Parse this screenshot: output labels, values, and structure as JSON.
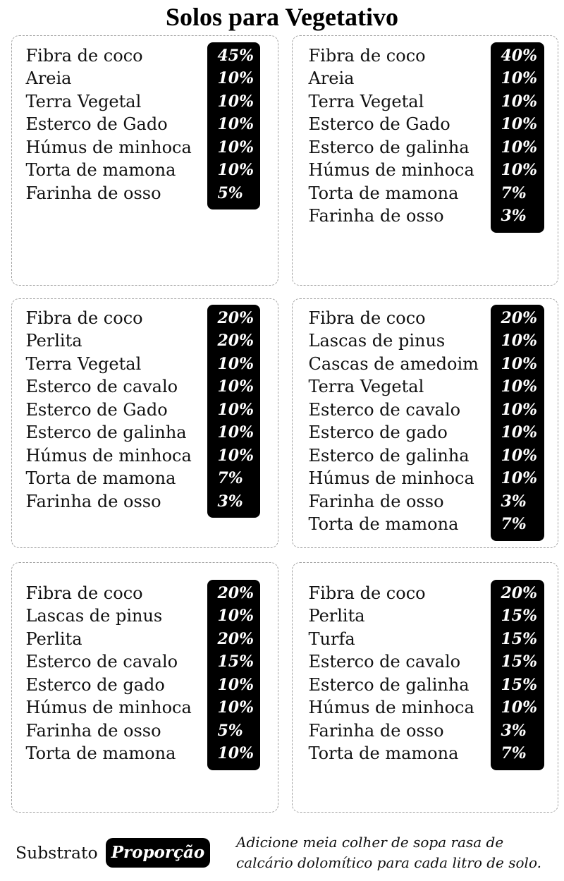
{
  "title": "Solos para Vegetativo",
  "colors": {
    "proportion_box": "#000000",
    "proportion_text": "#ffffff",
    "card_border": "#a3a3a3"
  },
  "cards": [
    {
      "items": [
        {
          "name": "Fibra de coco",
          "pct": "45%"
        },
        {
          "name": "Areia",
          "pct": "10%"
        },
        {
          "name": "Terra Vegetal",
          "pct": "10%"
        },
        {
          "name": "Esterco de Gado",
          "pct": "10%"
        },
        {
          "name": "Húmus de minhoca",
          "pct": "10%"
        },
        {
          "name": "Torta de mamona",
          "pct": "10%"
        },
        {
          "name": "Farinha de osso",
          "pct": "5%"
        }
      ]
    },
    {
      "items": [
        {
          "name": "Fibra de coco",
          "pct": "40%"
        },
        {
          "name": "Areia",
          "pct": "10%"
        },
        {
          "name": "Terra Vegetal",
          "pct": "10%"
        },
        {
          "name": "Esterco de Gado",
          "pct": "10%"
        },
        {
          "name": "Esterco de galinha",
          "pct": "10%"
        },
        {
          "name": "Húmus de minhoca",
          "pct": "10%"
        },
        {
          "name": "Torta de mamona",
          "pct": "7%"
        },
        {
          "name": "Farinha de osso",
          "pct": "3%"
        }
      ]
    },
    {
      "items": [
        {
          "name": "Fibra de coco",
          "pct": "20%"
        },
        {
          "name": "Perlita",
          "pct": "20%"
        },
        {
          "name": "Terra Vegetal",
          "pct": "10%"
        },
        {
          "name": "Esterco de cavalo",
          "pct": "10%"
        },
        {
          "name": "Esterco de Gado",
          "pct": "10%"
        },
        {
          "name": "Esterco de galinha",
          "pct": "10%"
        },
        {
          "name": "Húmus de minhoca",
          "pct": "10%"
        },
        {
          "name": "Torta de mamona",
          "pct": "7%"
        },
        {
          "name": "Farinha de osso",
          "pct": "3%"
        }
      ]
    },
    {
      "items": [
        {
          "name": "Fibra de coco",
          "pct": "20%"
        },
        {
          "name": "Lascas de pinus",
          "pct": "10%"
        },
        {
          "name": "Cascas de amedoim",
          "pct": "10%"
        },
        {
          "name": "Terra Vegetal",
          "pct": "10%"
        },
        {
          "name": "Esterco de cavalo",
          "pct": "10%"
        },
        {
          "name": "Esterco de gado",
          "pct": "10%"
        },
        {
          "name": "Esterco de galinha",
          "pct": "10%"
        },
        {
          "name": "Húmus de minhoca",
          "pct": "10%"
        },
        {
          "name": "Farinha de osso",
          "pct": "3%"
        },
        {
          "name": "Torta de mamona",
          "pct": "7%"
        }
      ]
    },
    {
      "items": [
        {
          "name": "Fibra de coco",
          "pct": "20%"
        },
        {
          "name": "Lascas de pinus",
          "pct": "10%"
        },
        {
          "name": "Perlita",
          "pct": "20%"
        },
        {
          "name": "Esterco de cavalo",
          "pct": "15%"
        },
        {
          "name": "Esterco de gado",
          "pct": "10%"
        },
        {
          "name": "Húmus de minhoca",
          "pct": "10%"
        },
        {
          "name": "Farinha de osso",
          "pct": "5%"
        },
        {
          "name": "Torta de mamona",
          "pct": "10%"
        }
      ]
    },
    {
      "items": [
        {
          "name": "Fibra de coco",
          "pct": "20%"
        },
        {
          "name": "Perlita",
          "pct": "15%"
        },
        {
          "name": "Turfa",
          "pct": "15%"
        },
        {
          "name": "Esterco de cavalo",
          "pct": "15%"
        },
        {
          "name": "Esterco de galinha",
          "pct": "15%"
        },
        {
          "name": "Húmus de minhoca",
          "pct": "10%"
        },
        {
          "name": "Farinha de osso",
          "pct": "3%"
        },
        {
          "name": "Torta de mamona",
          "pct": "7%"
        }
      ]
    }
  ],
  "legend": {
    "substrate_label": "Substrato",
    "proportion_label": "Proporção"
  },
  "note": {
    "lines": [
      "Adicione meia colher de sopa rasa de",
      "calcário dolomítico para cada litro de solo."
    ]
  }
}
